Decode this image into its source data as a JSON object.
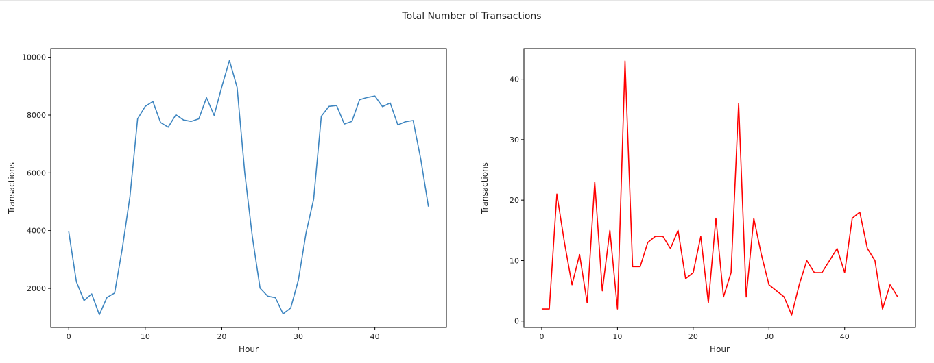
{
  "figure": {
    "suptitle": "Total Number of Transactions"
  },
  "chart_data": [
    {
      "type": "line",
      "xlabel": "Hour",
      "ylabel": "Transactions",
      "color": "#3d85c0",
      "xlim": [
        -2.35,
        49.35
      ],
      "ylim": [
        650,
        10300
      ],
      "xticks": [
        0,
        10,
        20,
        30,
        40
      ],
      "yticks": [
        2000,
        4000,
        6000,
        8000,
        10000
      ],
      "grid": false,
      "x": [
        0,
        1,
        2,
        3,
        4,
        5,
        6,
        7,
        8,
        9,
        10,
        11,
        12,
        13,
        14,
        15,
        16,
        17,
        18,
        19,
        20,
        21,
        22,
        23,
        24,
        25,
        26,
        27,
        28,
        29,
        30,
        31,
        32,
        33,
        34,
        35,
        36,
        37,
        38,
        39,
        40,
        41,
        42,
        43,
        44,
        45,
        46,
        47
      ],
      "y": [
        3970,
        2230,
        1580,
        1810,
        1090,
        1690,
        1840,
        3380,
        5180,
        7870,
        8300,
        8470,
        7740,
        7580,
        8010,
        7830,
        7780,
        7870,
        8600,
        7990,
        8980,
        9890,
        8960,
        6000,
        3770,
        2010,
        1730,
        1680,
        1120,
        1320,
        2280,
        3910,
        5090,
        7960,
        8300,
        8330,
        7690,
        7780,
        8530,
        8610,
        8660,
        8290,
        8420,
        7660,
        7770,
        7810,
        6470,
        4830
      ]
    },
    {
      "type": "line",
      "xlabel": "Hour",
      "ylabel": "Transactions",
      "color": "#ff0000",
      "xlim": [
        -2.35,
        49.35
      ],
      "ylim": [
        -1.05,
        45.05
      ],
      "xticks": [
        0,
        10,
        20,
        30,
        40
      ],
      "yticks": [
        0,
        10,
        20,
        30,
        40
      ],
      "grid": false,
      "x": [
        0,
        1,
        2,
        3,
        4,
        5,
        6,
        7,
        8,
        9,
        10,
        11,
        12,
        13,
        14,
        15,
        16,
        17,
        18,
        19,
        20,
        21,
        22,
        23,
        24,
        25,
        26,
        27,
        28,
        29,
        30,
        31,
        32,
        33,
        34,
        35,
        36,
        37,
        38,
        39,
        40,
        41,
        42,
        43,
        44,
        45,
        46,
        47
      ],
      "y": [
        2,
        2,
        21,
        13,
        6,
        11,
        3,
        23,
        5,
        15,
        2,
        43,
        9,
        9,
        13,
        14,
        14,
        12,
        15,
        7,
        8,
        14,
        3,
        17,
        4,
        8,
        36,
        4,
        17,
        11,
        6,
        5,
        4,
        1,
        6,
        10,
        8,
        8,
        10,
        12,
        8,
        17,
        18,
        12,
        10,
        2,
        6,
        4
      ]
    }
  ]
}
